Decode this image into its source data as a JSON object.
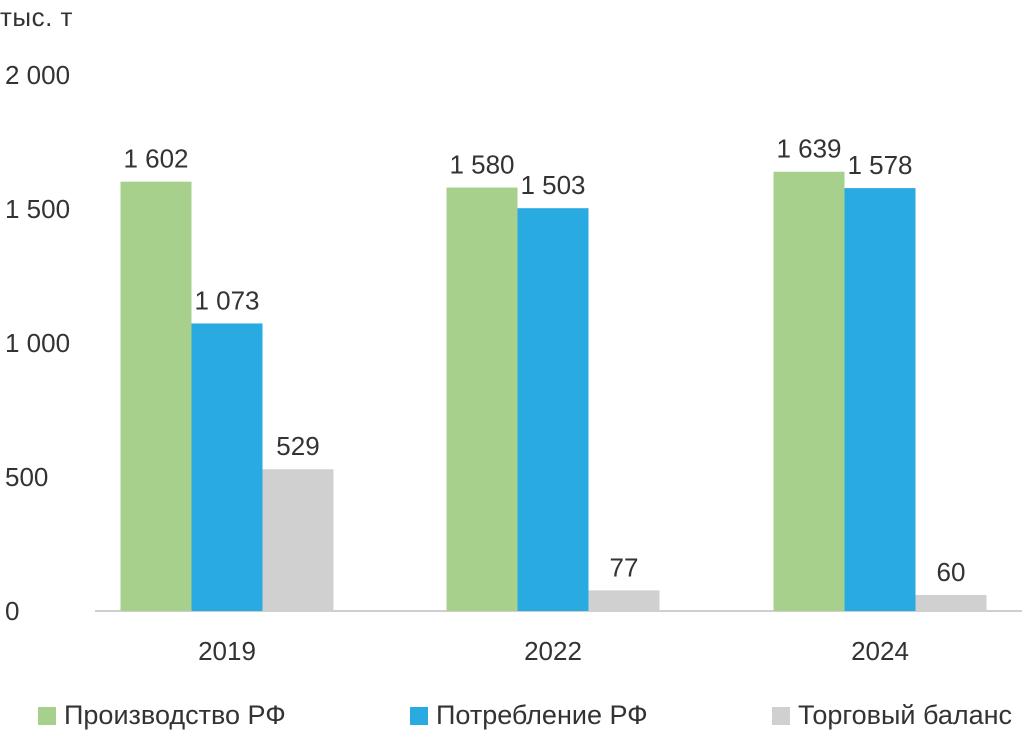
{
  "chart_data": {
    "type": "bar",
    "ylabel": "тыс. т",
    "xlabel": "",
    "title": "",
    "categories": [
      "2019",
      "2022",
      "2024"
    ],
    "series": [
      {
        "name": "Производство РФ",
        "color": "#a8d08d",
        "values": [
          1602,
          1580,
          1639
        ],
        "labels": [
          "1 602",
          "1 580",
          "1 639"
        ]
      },
      {
        "name": "Потребление РФ",
        "color": "#29abe2",
        "values": [
          1073,
          1503,
          1578
        ],
        "labels": [
          "1 073",
          "1 503",
          "1 578"
        ]
      },
      {
        "name": "Торговый баланс",
        "color": "#d0d0d0",
        "values": [
          529,
          77,
          60
        ],
        "labels": [
          "529",
          "77",
          "60"
        ]
      }
    ],
    "ylim": [
      0,
      2000
    ],
    "yticks": [
      0,
      500,
      1000,
      1500,
      2000
    ],
    "ytick_labels": [
      "0",
      "500",
      "1 000",
      "1 500",
      "2 000"
    ],
    "grid": false,
    "legend_position": "bottom"
  }
}
